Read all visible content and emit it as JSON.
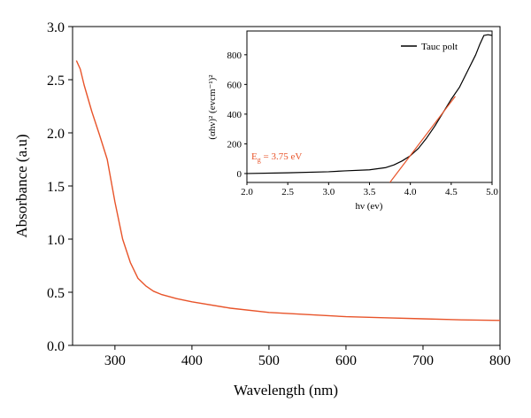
{
  "colors": {
    "curve": "#e8542a",
    "fit": "#e8542a",
    "inset_curve": "#000000",
    "axes": "#000000",
    "background": "#ffffff"
  },
  "chart_data": [
    {
      "type": "line",
      "title": "",
      "xlabel": "Wavelength (nm)",
      "ylabel": "Absorbance (a.u)",
      "xlim": [
        245,
        800
      ],
      "ylim": [
        0.0,
        3.0
      ],
      "xticks": [
        300,
        400,
        500,
        600,
        700,
        800
      ],
      "xtick_labels": [
        "300",
        "400",
        "500",
        "600",
        "700",
        "800"
      ],
      "yticks": [
        0.0,
        0.5,
        1.0,
        1.5,
        2.0,
        2.5,
        3.0
      ],
      "ytick_labels": [
        "0.0",
        "0.5",
        "1.0",
        "1.5",
        "2.0",
        "2.5",
        "3.0"
      ],
      "grid": false,
      "series": [
        {
          "color": "#e8542a",
          "x": [
            250,
            255,
            260,
            270,
            280,
            290,
            295,
            300,
            310,
            320,
            330,
            340,
            350,
            360,
            380,
            400,
            450,
            500,
            550,
            600,
            650,
            700,
            750,
            800
          ],
          "y": [
            2.68,
            2.6,
            2.45,
            2.2,
            1.98,
            1.75,
            1.55,
            1.35,
            1.0,
            0.78,
            0.63,
            0.56,
            0.51,
            0.48,
            0.44,
            0.41,
            0.35,
            0.31,
            0.29,
            0.27,
            0.26,
            0.25,
            0.24,
            0.235
          ]
        }
      ]
    },
    {
      "type": "line",
      "title": "",
      "xlabel": "hν (ev)",
      "ylabel": "(αhν)² (evcm⁻¹)²",
      "xlim": [
        2.0,
        5.0
      ],
      "ylim": [
        -60,
        960
      ],
      "xticks": [
        2.0,
        2.5,
        3.0,
        3.5,
        4.0,
        4.5,
        5.0
      ],
      "xtick_labels": [
        "2.0",
        "2.5",
        "3.0",
        "3.5",
        "4.0",
        "4.5",
        "5.0"
      ],
      "yticks": [
        0,
        200,
        400,
        600,
        800
      ],
      "ytick_labels": [
        "0",
        "200",
        "400",
        "600",
        "800"
      ],
      "grid": false,
      "legend": {
        "position": "top-right",
        "entries": [
          "Tauc polt"
        ]
      },
      "annotation": {
        "base": "E",
        "subscript": "g",
        "text": " = 3.75 eV"
      },
      "series": [
        {
          "name": "Tauc polt",
          "color": "#000000",
          "x": [
            2.0,
            2.5,
            3.0,
            3.2,
            3.5,
            3.7,
            3.8,
            3.9,
            4.0,
            4.1,
            4.2,
            4.3,
            4.4,
            4.5,
            4.6,
            4.7,
            4.8,
            4.85,
            4.9,
            4.95,
            5.0
          ],
          "y": [
            0,
            5,
            12,
            18,
            25,
            40,
            58,
            85,
            120,
            170,
            240,
            320,
            410,
            500,
            580,
            690,
            800,
            870,
            930,
            935,
            930
          ]
        },
        {
          "color": "#e8542a",
          "x": [
            3.75,
            4.55
          ],
          "y": [
            -60,
            520
          ]
        }
      ]
    }
  ]
}
